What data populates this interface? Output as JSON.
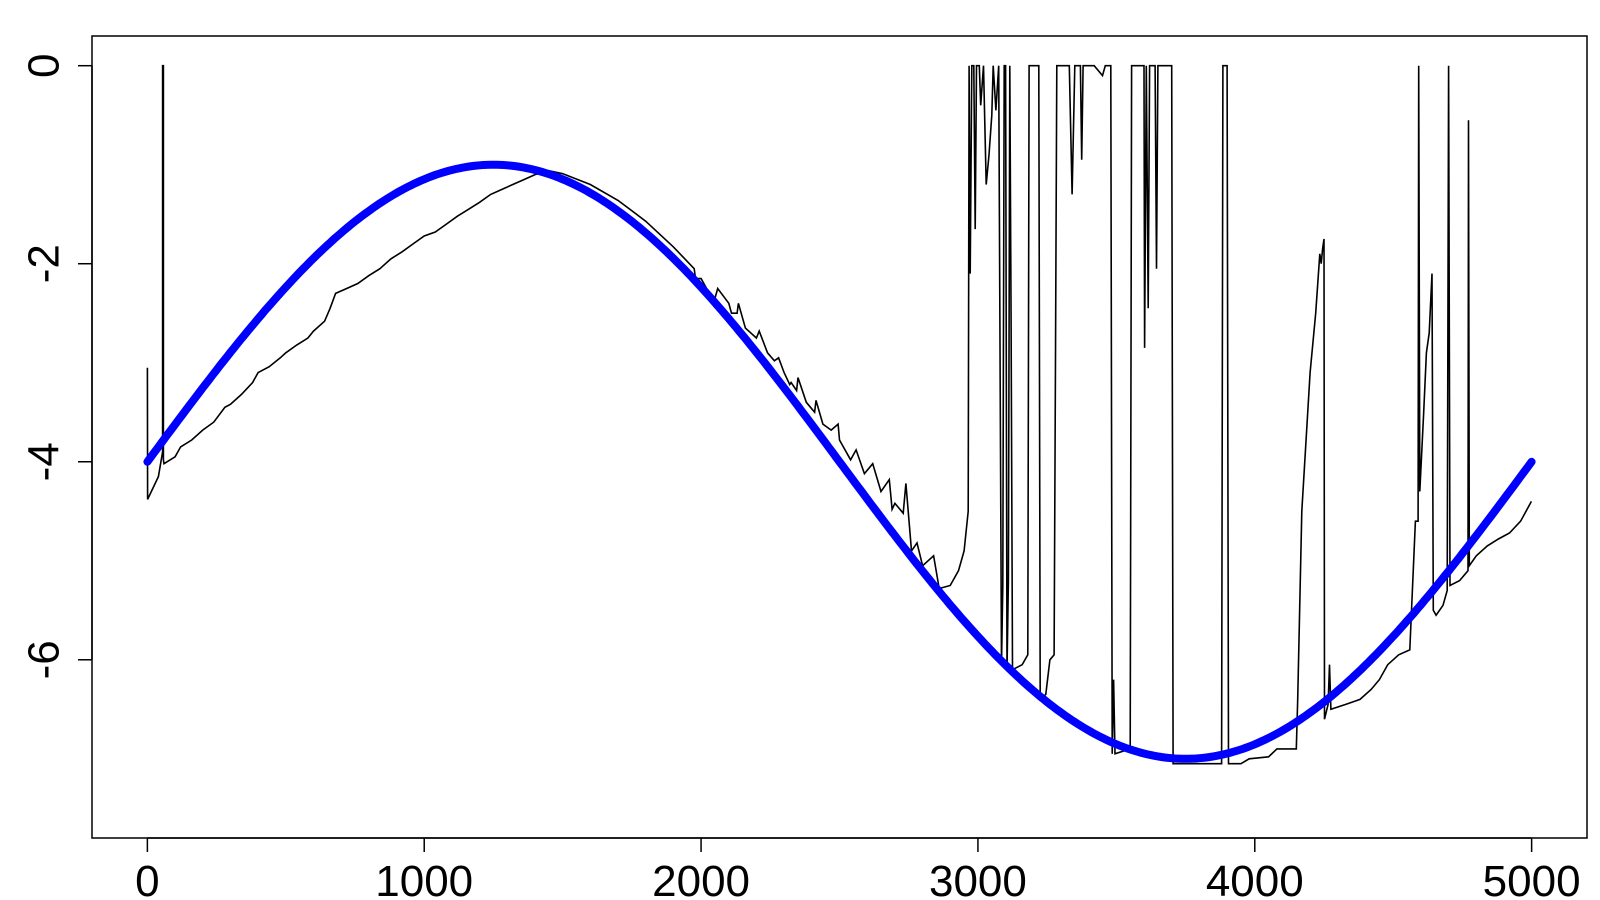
{
  "chart_data": {
    "type": "line",
    "title": "",
    "xlabel": "",
    "ylabel": "",
    "xlim": [
      -200,
      5200
    ],
    "ylim": [
      -7.8,
      0.3
    ],
    "x_ticks": [
      0,
      1000,
      2000,
      3000,
      4000,
      5000
    ],
    "x_tick_labels": [
      "0",
      "1000",
      "2000",
      "3000",
      "4000",
      "5000"
    ],
    "y_ticks": [
      0,
      -2,
      -4,
      -6
    ],
    "y_tick_labels": [
      "0",
      "-2",
      "-4",
      "-6"
    ],
    "grid": false,
    "legend": "none",
    "series": [
      {
        "style": "thin black step line",
        "color": "#000000",
        "points": [
          [
            0,
            -3.05
          ],
          [
            1,
            -4.38
          ],
          [
            40,
            -4.15
          ],
          [
            55,
            -3.9
          ],
          [
            55,
            0.0
          ],
          [
            58,
            0.0
          ],
          [
            58,
            -3.98
          ],
          [
            60,
            -4.02
          ],
          [
            100,
            -3.95
          ],
          [
            120,
            -3.85
          ],
          [
            160,
            -3.78
          ],
          [
            200,
            -3.68
          ],
          [
            240,
            -3.6
          ],
          [
            280,
            -3.45
          ],
          [
            300,
            -3.42
          ],
          [
            340,
            -3.32
          ],
          [
            380,
            -3.2
          ],
          [
            400,
            -3.1
          ],
          [
            440,
            -3.04
          ],
          [
            480,
            -2.95
          ],
          [
            500,
            -2.9
          ],
          [
            540,
            -2.82
          ],
          [
            580,
            -2.75
          ],
          [
            600,
            -2.68
          ],
          [
            640,
            -2.58
          ],
          [
            660,
            -2.45
          ],
          [
            680,
            -2.3
          ],
          [
            720,
            -2.25
          ],
          [
            760,
            -2.2
          ],
          [
            800,
            -2.12
          ],
          [
            840,
            -2.05
          ],
          [
            880,
            -1.95
          ],
          [
            920,
            -1.88
          ],
          [
            960,
            -1.8
          ],
          [
            1000,
            -1.72
          ],
          [
            1040,
            -1.68
          ],
          [
            1080,
            -1.6
          ],
          [
            1120,
            -1.52
          ],
          [
            1160,
            -1.45
          ],
          [
            1200,
            -1.38
          ],
          [
            1240,
            -1.3
          ],
          [
            1280,
            -1.25
          ],
          [
            1320,
            -1.2
          ],
          [
            1360,
            -1.15
          ],
          [
            1400,
            -1.1
          ],
          [
            1450,
            -1.06
          ],
          [
            1500,
            -1.09
          ],
          [
            1600,
            -1.2
          ],
          [
            1700,
            -1.36
          ],
          [
            1800,
            -1.57
          ],
          [
            1900,
            -1.83
          ],
          [
            1975,
            -2.05
          ],
          [
            1980,
            -2.15
          ],
          [
            2000,
            -2.15
          ],
          [
            2020,
            -2.25
          ],
          [
            2050,
            -2.35
          ],
          [
            2060,
            -2.25
          ],
          [
            2100,
            -2.4
          ],
          [
            2110,
            -2.5
          ],
          [
            2130,
            -2.5
          ],
          [
            2135,
            -2.4
          ],
          [
            2160,
            -2.65
          ],
          [
            2200,
            -2.75
          ],
          [
            2210,
            -2.68
          ],
          [
            2240,
            -2.9
          ],
          [
            2265,
            -2.98
          ],
          [
            2280,
            -2.95
          ],
          [
            2300,
            -3.1
          ],
          [
            2320,
            -3.22
          ],
          [
            2325,
            -3.2
          ],
          [
            2345,
            -3.28
          ],
          [
            2350,
            -3.15
          ],
          [
            2380,
            -3.4
          ],
          [
            2410,
            -3.5
          ],
          [
            2415,
            -3.38
          ],
          [
            2440,
            -3.62
          ],
          [
            2470,
            -3.68
          ],
          [
            2495,
            -3.62
          ],
          [
            2500,
            -3.78
          ],
          [
            2540,
            -3.98
          ],
          [
            2560,
            -3.88
          ],
          [
            2590,
            -4.12
          ],
          [
            2620,
            -4.02
          ],
          [
            2650,
            -4.3
          ],
          [
            2680,
            -4.18
          ],
          [
            2690,
            -4.48
          ],
          [
            2700,
            -4.42
          ],
          [
            2730,
            -4.52
          ],
          [
            2740,
            -4.22
          ],
          [
            2760,
            -4.9
          ],
          [
            2780,
            -4.82
          ],
          [
            2800,
            -5.05
          ],
          [
            2840,
            -4.95
          ],
          [
            2860,
            -5.28
          ],
          [
            2900,
            -5.25
          ],
          [
            2930,
            -5.1
          ],
          [
            2950,
            -4.9
          ],
          [
            2965,
            -4.5
          ],
          [
            2968,
            0.0
          ],
          [
            2972,
            -2.1
          ],
          [
            2978,
            0.0
          ],
          [
            2985,
            0.0
          ],
          [
            2990,
            -1.65
          ],
          [
            2995,
            0.0
          ],
          [
            3005,
            0.0
          ],
          [
            3010,
            -0.4
          ],
          [
            3020,
            0.0
          ],
          [
            3030,
            -1.2
          ],
          [
            3040,
            -0.9
          ],
          [
            3050,
            -0.5
          ],
          [
            3055,
            0.0
          ],
          [
            3065,
            -0.45
          ],
          [
            3075,
            0.0
          ],
          [
            3085,
            -6.05
          ],
          [
            3090,
            -5.25
          ],
          [
            3095,
            0.0
          ],
          [
            3100,
            0.0
          ],
          [
            3105,
            -6.1
          ],
          [
            3110,
            -5.2
          ],
          [
            3115,
            0.0
          ],
          [
            3120,
            -2.6
          ],
          [
            3125,
            -6.1
          ],
          [
            3160,
            -6.05
          ],
          [
            3180,
            -5.95
          ],
          [
            3185,
            0.0
          ],
          [
            3220,
            0.0
          ],
          [
            3225,
            -6.4
          ],
          [
            3245,
            -6.35
          ],
          [
            3260,
            -6.0
          ],
          [
            3275,
            -5.95
          ],
          [
            3280,
            -3.15
          ],
          [
            3285,
            0.0
          ],
          [
            3330,
            0.0
          ],
          [
            3340,
            -1.3
          ],
          [
            3350,
            0.0
          ],
          [
            3370,
            0.0
          ],
          [
            3375,
            -0.95
          ],
          [
            3380,
            0.0
          ],
          [
            3420,
            0.0
          ],
          [
            3450,
            -0.1
          ],
          [
            3460,
            0.0
          ],
          [
            3480,
            0.0
          ],
          [
            3485,
            -6.95
          ],
          [
            3490,
            -6.2
          ],
          [
            3495,
            -6.95
          ],
          [
            3550,
            -6.9
          ],
          [
            3555,
            0.0
          ],
          [
            3600,
            0.0
          ],
          [
            3602,
            -2.85
          ],
          [
            3608,
            0.0
          ],
          [
            3615,
            -2.45
          ],
          [
            3620,
            0.0
          ],
          [
            3640,
            0.0
          ],
          [
            3645,
            -2.05
          ],
          [
            3650,
            0.0
          ],
          [
            3700,
            0.0
          ],
          [
            3705,
            -7.05
          ],
          [
            3880,
            -7.05
          ],
          [
            3885,
            0.0
          ],
          [
            3900,
            0.0
          ],
          [
            3905,
            -7.05
          ],
          [
            3950,
            -7.05
          ],
          [
            3980,
            -7.0
          ],
          [
            4050,
            -6.98
          ],
          [
            4080,
            -6.9
          ],
          [
            4150,
            -6.9
          ],
          [
            4155,
            -6.4
          ],
          [
            4170,
            -4.5
          ],
          [
            4200,
            -3.1
          ],
          [
            4220,
            -2.5
          ],
          [
            4235,
            -1.9
          ],
          [
            4240,
            -2.0
          ],
          [
            4245,
            -1.85
          ],
          [
            4250,
            -1.75
          ],
          [
            4252,
            -6.6
          ],
          [
            4265,
            -6.45
          ],
          [
            4270,
            -6.05
          ],
          [
            4275,
            -6.5
          ],
          [
            4330,
            -6.45
          ],
          [
            4380,
            -6.4
          ],
          [
            4420,
            -6.3
          ],
          [
            4450,
            -6.2
          ],
          [
            4480,
            -6.05
          ],
          [
            4520,
            -5.95
          ],
          [
            4560,
            -5.9
          ],
          [
            4580,
            -4.6
          ],
          [
            4590,
            -4.6
          ],
          [
            4592,
            0.0
          ],
          [
            4596,
            -4.3
          ],
          [
            4610,
            -3.5
          ],
          [
            4620,
            -2.9
          ],
          [
            4630,
            -2.7
          ],
          [
            4640,
            -2.1
          ],
          [
            4645,
            -5.5
          ],
          [
            4655,
            -5.55
          ],
          [
            4680,
            -5.45
          ],
          [
            4695,
            -5.3
          ],
          [
            4700,
            0.0
          ],
          [
            4705,
            -5.25
          ],
          [
            4740,
            -5.2
          ],
          [
            4770,
            -5.1
          ],
          [
            4772,
            -0.55
          ],
          [
            4775,
            -5.05
          ],
          [
            4800,
            -4.95
          ],
          [
            4840,
            -4.85
          ],
          [
            4880,
            -4.78
          ],
          [
            4920,
            -4.72
          ],
          [
            4960,
            -4.6
          ],
          [
            4999,
            -4.4
          ]
        ]
      },
      {
        "style": "thick blue curve",
        "color": "#0000ff",
        "function": "-4 + 3*sin(2*pi*x/5000)",
        "x_range": [
          0,
          5000
        ]
      }
    ]
  }
}
